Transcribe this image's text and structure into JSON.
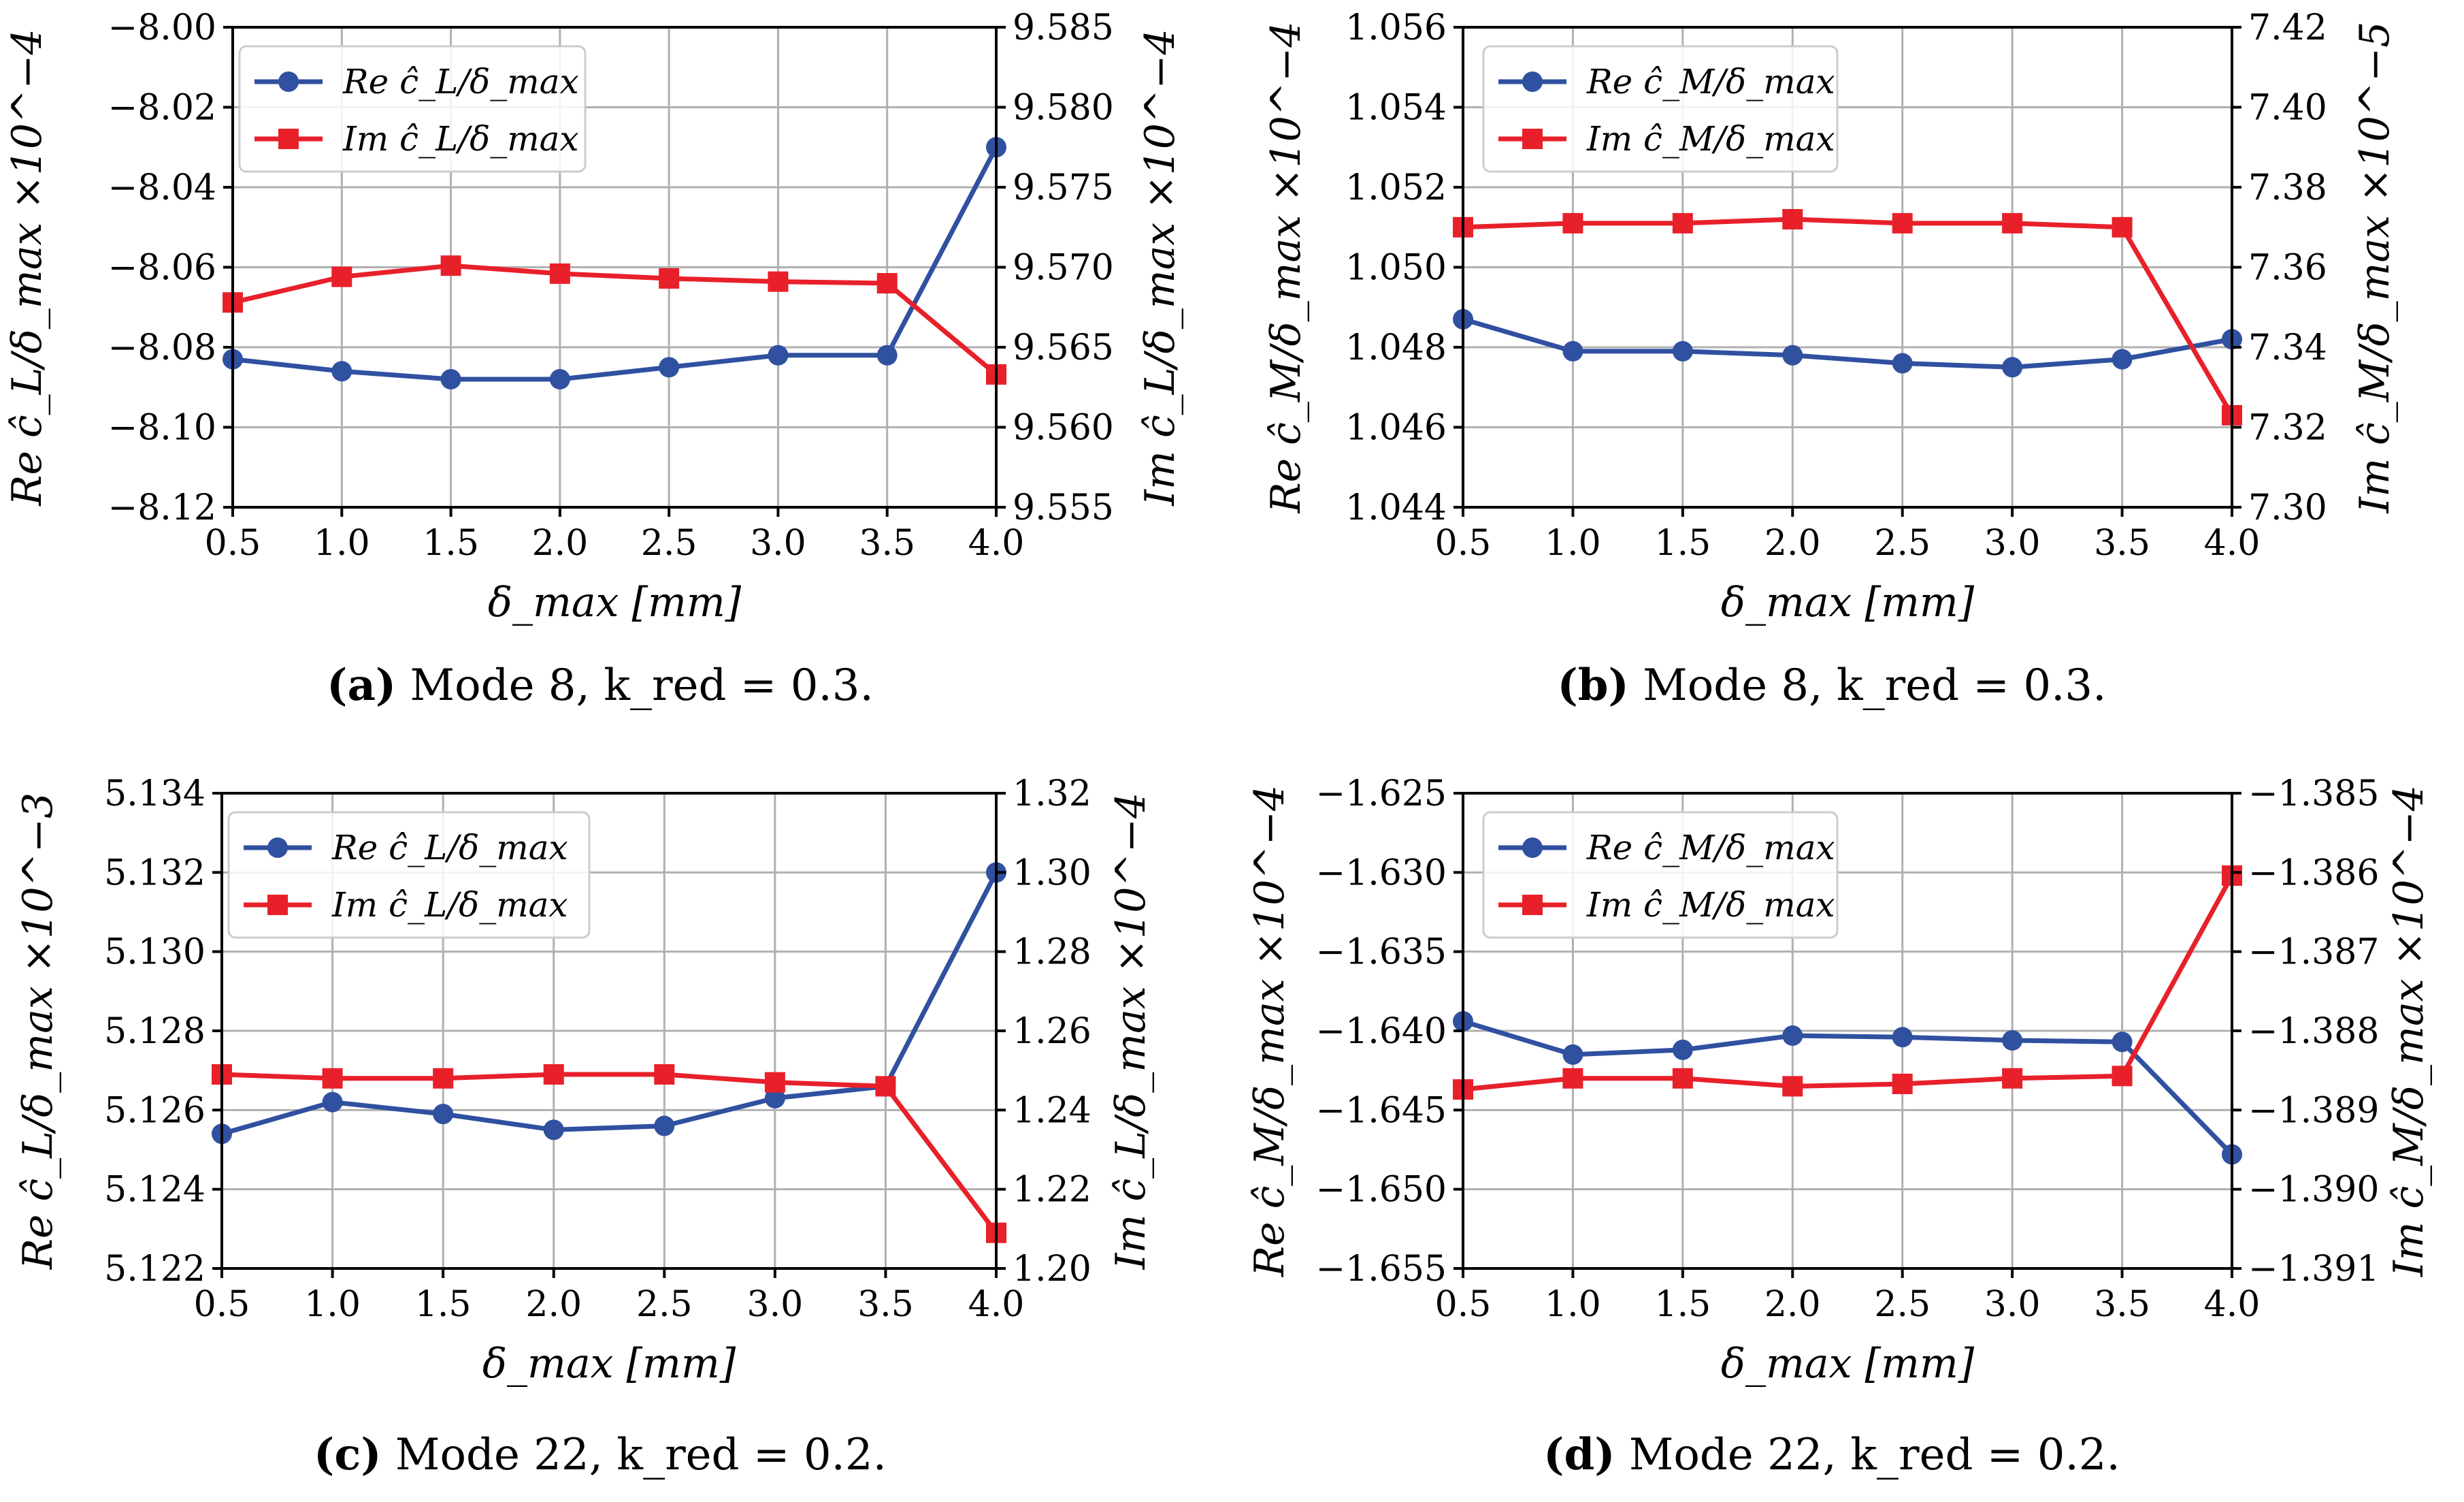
{
  "colors": {
    "re": "#3050a0",
    "im": "#e8202a",
    "grid": "#b0b0b0"
  },
  "chart_data": [
    {
      "type": "line",
      "caption": {
        "letter": "(a)",
        "text": "Mode 8, k_red = 0.3."
      },
      "xlabel": "δ_max [mm]",
      "ylabel_left": "Re ĉ_L/δ_max ×10^−4",
      "ylabel_right": "Im ĉ_L/δ_max ×10^−4",
      "x": [
        0.5,
        1.0,
        1.5,
        2.0,
        2.5,
        3.0,
        3.5,
        4.0
      ],
      "xticks": [
        "0.5",
        "1.0",
        "1.5",
        "2.0",
        "2.5",
        "3.0",
        "3.5",
        "4.0"
      ],
      "xlim": [
        0.5,
        4.0
      ],
      "ylim_left": [
        -8.12,
        -8.0
      ],
      "yticks_left": [
        "−8.00",
        "−8.02",
        "−8.04",
        "−8.06",
        "−8.08",
        "−8.10",
        "−8.12"
      ],
      "ylim_right": [
        9.555,
        9.585
      ],
      "yticks_right": [
        "9.585",
        "9.580",
        "9.575",
        "9.570",
        "9.565",
        "9.560",
        "9.555"
      ],
      "series": [
        {
          "name": "Re ĉ_L/δ_max",
          "axis": "left",
          "marker": "circle",
          "values": [
            -8.083,
            -8.086,
            -8.088,
            -8.088,
            -8.085,
            -8.082,
            -8.082,
            -8.03
          ]
        },
        {
          "name": "Im ĉ_L/δ_max",
          "axis": "right",
          "marker": "square",
          "values": [
            9.5678,
            9.5694,
            9.5701,
            9.5696,
            9.5693,
            9.5691,
            9.569,
            9.5633
          ]
        }
      ],
      "legend": "top-left"
    },
    {
      "type": "line",
      "caption": {
        "letter": "(b)",
        "text": "Mode 8, k_red = 0.3."
      },
      "xlabel": "δ_max [mm]",
      "ylabel_left": "Re ĉ_M/δ_max ×10^−4",
      "ylabel_right": "Im ĉ_M/δ_max ×10^−5",
      "x": [
        0.5,
        1.0,
        1.5,
        2.0,
        2.5,
        3.0,
        3.5,
        4.0
      ],
      "xticks": [
        "0.5",
        "1.0",
        "1.5",
        "2.0",
        "2.5",
        "3.0",
        "3.5",
        "4.0"
      ],
      "xlim": [
        0.5,
        4.0
      ],
      "ylim_left": [
        1.044,
        1.056
      ],
      "yticks_left": [
        "1.056",
        "1.054",
        "1.052",
        "1.050",
        "1.048",
        "1.046",
        "1.044"
      ],
      "ylim_right": [
        7.3,
        7.42
      ],
      "yticks_right": [
        "7.42",
        "7.40",
        "7.38",
        "7.36",
        "7.34",
        "7.32",
        "7.30"
      ],
      "series": [
        {
          "name": "Re ĉ_M/δ_max",
          "axis": "left",
          "marker": "circle",
          "values": [
            1.0487,
            1.0479,
            1.0479,
            1.0478,
            1.0476,
            1.0475,
            1.0477,
            1.0482
          ]
        },
        {
          "name": "Im ĉ_M/δ_max",
          "axis": "right",
          "marker": "square",
          "values": [
            7.37,
            7.371,
            7.371,
            7.372,
            7.371,
            7.371,
            7.37,
            7.323
          ]
        }
      ],
      "legend": "top-left"
    },
    {
      "type": "line",
      "caption": {
        "letter": "(c)",
        "text": "Mode 22, k_red = 0.2."
      },
      "xlabel": "δ_max [mm]",
      "ylabel_left": "Re ĉ_L/δ_max ×10^−3",
      "ylabel_right": "Im ĉ_L/δ_max ×10^−4",
      "x": [
        0.5,
        1.0,
        1.5,
        2.0,
        2.5,
        3.0,
        3.5,
        4.0
      ],
      "xticks": [
        "0.5",
        "1.0",
        "1.5",
        "2.0",
        "2.5",
        "3.0",
        "3.5",
        "4.0"
      ],
      "xlim": [
        0.5,
        4.0
      ],
      "ylim_left": [
        5.122,
        5.134
      ],
      "yticks_left": [
        "5.134",
        "5.132",
        "5.130",
        "5.128",
        "5.126",
        "5.124",
        "5.122"
      ],
      "ylim_right": [
        1.2,
        1.32
      ],
      "yticks_right": [
        "1.32",
        "1.30",
        "1.28",
        "1.26",
        "1.24",
        "1.22",
        "1.20"
      ],
      "series": [
        {
          "name": "Re ĉ_L/δ_max",
          "axis": "left",
          "marker": "circle",
          "values": [
            5.1254,
            5.1262,
            5.1259,
            5.1255,
            5.1256,
            5.1263,
            5.1266,
            5.132
          ]
        },
        {
          "name": "Im ĉ_L/δ_max",
          "axis": "right",
          "marker": "square",
          "values": [
            1.249,
            1.248,
            1.248,
            1.249,
            1.249,
            1.247,
            1.246,
            1.209
          ]
        }
      ],
      "legend": "top-left"
    },
    {
      "type": "line",
      "caption": {
        "letter": "(d)",
        "text": "Mode 22, k_red = 0.2."
      },
      "xlabel": "δ_max [mm]",
      "ylabel_left": "Re ĉ_M/δ_max ×10^−4",
      "ylabel_right": "Im ĉ_M/δ_max ×10^−4",
      "x": [
        0.5,
        1.0,
        1.5,
        2.0,
        2.5,
        3.0,
        3.5,
        4.0
      ],
      "xticks": [
        "0.5",
        "1.0",
        "1.5",
        "2.0",
        "2.5",
        "3.0",
        "3.5",
        "4.0"
      ],
      "xlim": [
        0.5,
        4.0
      ],
      "ylim_left": [
        -1.655,
        -1.625
      ],
      "yticks_left": [
        "−1.625",
        "−1.630",
        "−1.635",
        "−1.640",
        "−1.645",
        "−1.650",
        "−1.655"
      ],
      "ylim_right": [
        -1.391,
        -1.385
      ],
      "yticks_right": [
        "−1.385",
        "−1.386",
        "−1.387",
        "−1.388",
        "−1.389",
        "−1.390",
        "−1.391"
      ],
      "series": [
        {
          "name": "Re ĉ_M/δ_max",
          "axis": "left",
          "marker": "circle",
          "values": [
            -1.6394,
            -1.6415,
            -1.6412,
            -1.6403,
            -1.6404,
            -1.6406,
            -1.6407,
            -1.6478
          ]
        },
        {
          "name": "Im ĉ_M/δ_max",
          "axis": "right",
          "marker": "square",
          "values": [
            -1.38874,
            -1.3886,
            -1.3886,
            -1.3887,
            -1.38867,
            -1.3886,
            -1.38857,
            -1.38604
          ]
        }
      ],
      "legend": "top-left"
    }
  ]
}
